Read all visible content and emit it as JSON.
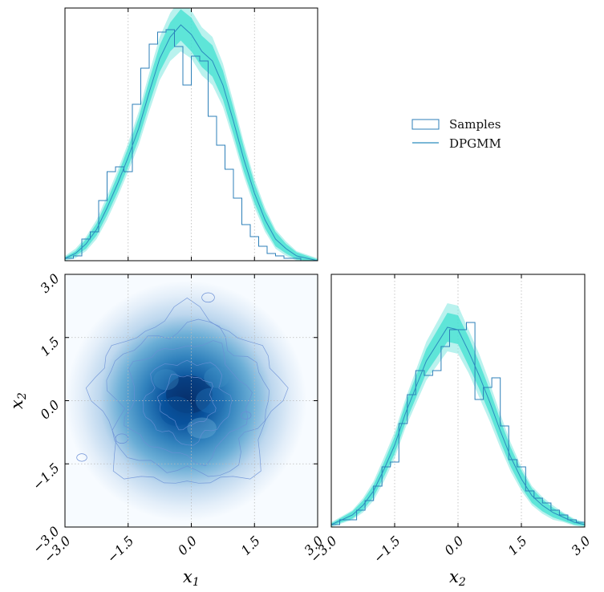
{
  "chart_data": {
    "type": "corner",
    "variables": [
      "x_1",
      "x_2"
    ],
    "axis_range": [
      -3.0,
      3.0
    ],
    "ticks": [
      -3.0,
      -1.5,
      0.0,
      1.5,
      3.0
    ],
    "tick_labels": [
      "−3.0",
      "−1.5",
      "0.0",
      "1.5",
      "3.0"
    ],
    "axis_labels": {
      "x1": "x",
      "x1_sub": "1",
      "x2": "x",
      "x2_sub": "2"
    },
    "grid": true,
    "legend": {
      "placement": "upper-right empty cell",
      "entries": [
        {
          "label": "Samples",
          "style": "step-histogram"
        },
        {
          "label": "DPGMM",
          "style": "line"
        }
      ]
    },
    "colors": {
      "samples": "#2c7fb8",
      "dpgmm_line": "#2b8cbe",
      "band_inner": "#40e0d0",
      "band_outer": "#7fe8e0",
      "density_light": "#f7fbff",
      "density_dark": "#08306b",
      "contour": "#6b8fd6"
    },
    "marginal_x1": {
      "hist_bins": [
        -3.0,
        -2.8,
        -2.6,
        -2.4,
        -2.2,
        -2.0,
        -1.8,
        -1.6,
        -1.4,
        -1.2,
        -1.0,
        -0.8,
        -0.6,
        -0.4,
        -0.2,
        0.0,
        0.2,
        0.4,
        0.6,
        0.8,
        1.0,
        1.2,
        1.4,
        1.6,
        1.8,
        2.0,
        2.2,
        2.4,
        2.6,
        2.8,
        3.0
      ],
      "hist_values": [
        0.01,
        0.02,
        0.09,
        0.12,
        0.25,
        0.37,
        0.39,
        0.37,
        0.65,
        0.8,
        0.9,
        0.95,
        0.96,
        0.89,
        0.73,
        0.85,
        0.83,
        0.6,
        0.48,
        0.38,
        0.26,
        0.15,
        0.1,
        0.06,
        0.03,
        0.02,
        0.01,
        0.01,
        0.0,
        0.0
      ],
      "curve_x": [
        -3.0,
        -2.75,
        -2.5,
        -2.25,
        -2.0,
        -1.75,
        -1.5,
        -1.25,
        -1.0,
        -0.75,
        -0.5,
        -0.25,
        0.0,
        0.25,
        0.5,
        0.75,
        1.0,
        1.25,
        1.5,
        1.75,
        2.0,
        2.25,
        2.5,
        2.75,
        3.0
      ],
      "curve_median": [
        0.01,
        0.03,
        0.07,
        0.13,
        0.22,
        0.32,
        0.43,
        0.55,
        0.7,
        0.84,
        0.93,
        0.98,
        0.94,
        0.87,
        0.83,
        0.73,
        0.58,
        0.42,
        0.28,
        0.17,
        0.09,
        0.05,
        0.02,
        0.01,
        0.0
      ],
      "band_inner_halfwidth": [
        0.005,
        0.01,
        0.02,
        0.025,
        0.03,
        0.035,
        0.04,
        0.045,
        0.05,
        0.055,
        0.06,
        0.065,
        0.07,
        0.065,
        0.065,
        0.06,
        0.055,
        0.05,
        0.04,
        0.035,
        0.03,
        0.02,
        0.015,
        0.01,
        0.005
      ],
      "band_outer_halfwidth": [
        0.01,
        0.02,
        0.03,
        0.04,
        0.05,
        0.055,
        0.06,
        0.07,
        0.08,
        0.09,
        0.1,
        0.11,
        0.1,
        0.1,
        0.1,
        0.09,
        0.08,
        0.07,
        0.06,
        0.05,
        0.04,
        0.03,
        0.02,
        0.015,
        0.01
      ],
      "ylim": [
        0,
        1.05
      ]
    },
    "marginal_x2": {
      "hist_bins": [
        -3.0,
        -2.8,
        -2.6,
        -2.4,
        -2.2,
        -2.0,
        -1.8,
        -1.6,
        -1.4,
        -1.2,
        -1.0,
        -0.8,
        -0.6,
        -0.4,
        -0.2,
        0.0,
        0.2,
        0.4,
        0.6,
        0.8,
        1.0,
        1.2,
        1.4,
        1.6,
        1.8,
        2.0,
        2.2,
        2.4,
        2.6,
        2.8,
        3.0
      ],
      "hist_values": [
        0.01,
        0.03,
        0.03,
        0.07,
        0.11,
        0.17,
        0.25,
        0.27,
        0.43,
        0.55,
        0.65,
        0.63,
        0.65,
        0.75,
        0.82,
        0.82,
        0.85,
        0.53,
        0.58,
        0.62,
        0.42,
        0.28,
        0.25,
        0.15,
        0.12,
        0.1,
        0.07,
        0.05,
        0.03,
        0.02
      ],
      "curve_x": [
        -3.0,
        -2.75,
        -2.5,
        -2.25,
        -2.0,
        -1.75,
        -1.5,
        -1.25,
        -1.0,
        -0.75,
        -0.5,
        -0.25,
        0.0,
        0.25,
        0.5,
        0.75,
        1.0,
        1.25,
        1.5,
        1.75,
        2.0,
        2.25,
        2.5,
        2.75,
        3.0
      ],
      "curve_median": [
        0.01,
        0.03,
        0.05,
        0.09,
        0.15,
        0.24,
        0.34,
        0.47,
        0.58,
        0.69,
        0.76,
        0.83,
        0.82,
        0.73,
        0.63,
        0.52,
        0.4,
        0.29,
        0.2,
        0.13,
        0.09,
        0.06,
        0.04,
        0.02,
        0.01
      ],
      "band_inner_halfwidth": [
        0.005,
        0.01,
        0.015,
        0.02,
        0.025,
        0.03,
        0.035,
        0.04,
        0.045,
        0.05,
        0.055,
        0.06,
        0.06,
        0.06,
        0.055,
        0.05,
        0.045,
        0.04,
        0.035,
        0.03,
        0.025,
        0.02,
        0.015,
        0.01,
        0.005
      ],
      "band_outer_halfwidth": [
        0.01,
        0.015,
        0.02,
        0.03,
        0.04,
        0.05,
        0.055,
        0.06,
        0.07,
        0.08,
        0.09,
        0.1,
        0.1,
        0.09,
        0.09,
        0.08,
        0.07,
        0.06,
        0.05,
        0.04,
        0.035,
        0.03,
        0.02,
        0.015,
        0.01
      ],
      "ylim": [
        0,
        1.05
      ]
    },
    "joint": {
      "type": "heatmap",
      "center": [
        -0.1,
        0.0
      ],
      "sigma": [
        0.95,
        0.95
      ],
      "contour_levels": [
        0.1,
        0.25,
        0.45,
        0.65,
        0.82
      ]
    }
  }
}
